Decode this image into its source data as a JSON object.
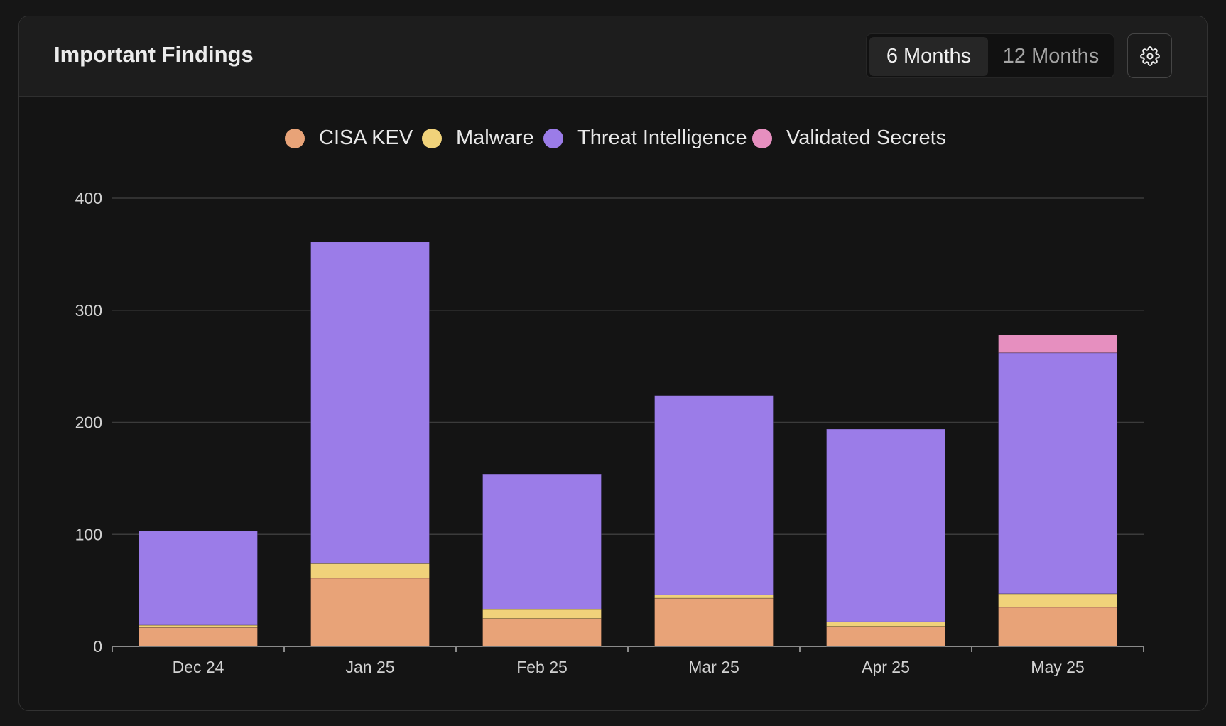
{
  "card": {
    "title": "Important Findings",
    "range_options": [
      "6 Months",
      "12 Months"
    ],
    "selected_range": "6 Months"
  },
  "colors": {
    "CISA KEV": "#e8a378",
    "Malware": "#f0d27a",
    "Threat Intelligence": "#9b7ce8",
    "Validated Secrets": "#e68fbf",
    "grid": "#3b3b3b",
    "axis": "#8a8a8a"
  },
  "chart_data": {
    "type": "bar",
    "stacked": true,
    "categories": [
      "Dec 24",
      "Jan 25",
      "Feb 25",
      "Mar 25",
      "Apr 25",
      "May 25"
    ],
    "series": [
      {
        "name": "CISA KEV",
        "values": [
          17,
          61,
          25,
          43,
          18,
          35
        ]
      },
      {
        "name": "Malware",
        "values": [
          2,
          13,
          8,
          3,
          4,
          12
        ]
      },
      {
        "name": "Threat Intelligence",
        "values": [
          84,
          287,
          121,
          178,
          172,
          215
        ]
      },
      {
        "name": "Validated Secrets",
        "values": [
          0,
          0,
          0,
          0,
          0,
          16
        ]
      }
    ],
    "y_ticks": [
      0,
      100,
      200,
      300,
      400
    ],
    "ylim": [
      0,
      400
    ],
    "legend_position": "top-center",
    "grid": true,
    "xlabel": "",
    "ylabel": ""
  }
}
